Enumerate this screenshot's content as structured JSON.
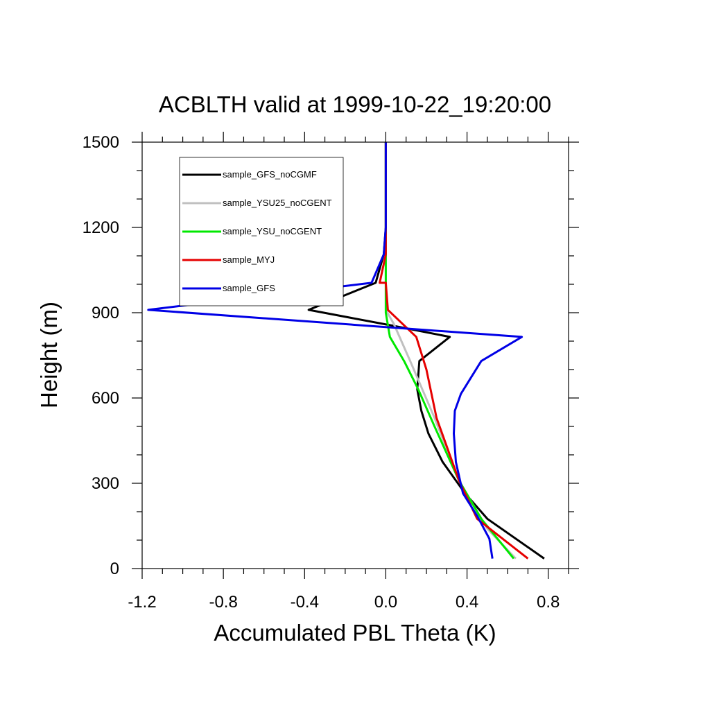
{
  "chart_data": {
    "type": "line",
    "title": "ACBLTH valid at 1999-10-22_19:20:00",
    "xlabel": "Accumulated PBL Theta (K)",
    "ylabel": "Height (m)",
    "xlim": [
      -1.2,
      0.9
    ],
    "ylim": [
      0,
      1500
    ],
    "xticks": [
      -1.2,
      -0.8,
      -0.4,
      0.0,
      0.4,
      0.8
    ],
    "xtick_labels": [
      "-1.2",
      "-0.8",
      "-0.4",
      "0.0",
      "0.4",
      "0.8"
    ],
    "yticks": [
      0,
      300,
      600,
      900,
      1200,
      1500
    ],
    "ytick_labels": [
      "0",
      "300",
      "600",
      "900",
      "1200",
      "1500"
    ],
    "grid": false,
    "legend_position": "top-left",
    "series": [
      {
        "name": "sample_GFS_noCGMF",
        "color": "#000000",
        "points": [
          [
            0.78,
            35
          ],
          [
            0.5,
            175
          ],
          [
            0.39,
            265
          ],
          [
            0.28,
            375
          ],
          [
            0.21,
            475
          ],
          [
            0.175,
            555
          ],
          [
            0.155,
            630
          ],
          [
            0.165,
            730
          ],
          [
            0.315,
            815
          ],
          [
            0.03,
            855
          ],
          [
            -0.38,
            910
          ],
          [
            -0.05,
            1005
          ],
          [
            -0.01,
            1105
          ],
          [
            0.0,
            1200
          ],
          [
            0.0,
            1500
          ]
        ]
      },
      {
        "name": "sample_YSU25_noCGENT",
        "color": "#c0c0c0",
        "points": [
          [
            0.64,
            35
          ],
          [
            0.5,
            140
          ],
          [
            0.36,
            310
          ],
          [
            0.24,
            530
          ],
          [
            0.12,
            730
          ],
          [
            0.04,
            860
          ],
          [
            0.0,
            910
          ],
          [
            0.0,
            1005
          ],
          [
            0.0,
            1500
          ]
        ]
      },
      {
        "name": "sample_YSU_noCGENT",
        "color": "#00e800",
        "points": [
          [
            0.63,
            35
          ],
          [
            0.47,
            175
          ],
          [
            0.36,
            310
          ],
          [
            0.24,
            500
          ],
          [
            0.16,
            630
          ],
          [
            0.09,
            730
          ],
          [
            0.02,
            815
          ],
          [
            0.0,
            900
          ],
          [
            0.0,
            1005
          ],
          [
            0.0,
            1500
          ]
        ]
      },
      {
        "name": "sample_MYJ",
        "color": "#e60000",
        "points": [
          [
            0.7,
            35
          ],
          [
            0.45,
            175
          ],
          [
            0.36,
            310
          ],
          [
            0.25,
            530
          ],
          [
            0.2,
            700
          ],
          [
            0.15,
            815
          ],
          [
            0.01,
            910
          ],
          [
            0.0,
            1005
          ],
          [
            -0.03,
            1005
          ],
          [
            0.0,
            1105
          ],
          [
            0.0,
            1500
          ]
        ]
      },
      {
        "name": "sample_GFS",
        "color": "#0000e6",
        "points": [
          [
            0.525,
            35
          ],
          [
            0.51,
            105
          ],
          [
            0.45,
            185
          ],
          [
            0.38,
            265
          ],
          [
            0.345,
            375
          ],
          [
            0.335,
            475
          ],
          [
            0.34,
            555
          ],
          [
            0.37,
            615
          ],
          [
            0.47,
            730
          ],
          [
            0.67,
            815
          ],
          [
            -1.17,
            910
          ],
          [
            -0.07,
            1005
          ],
          [
            -0.01,
            1105
          ],
          [
            0.0,
            1200
          ],
          [
            0.0,
            1500
          ]
        ]
      }
    ]
  }
}
